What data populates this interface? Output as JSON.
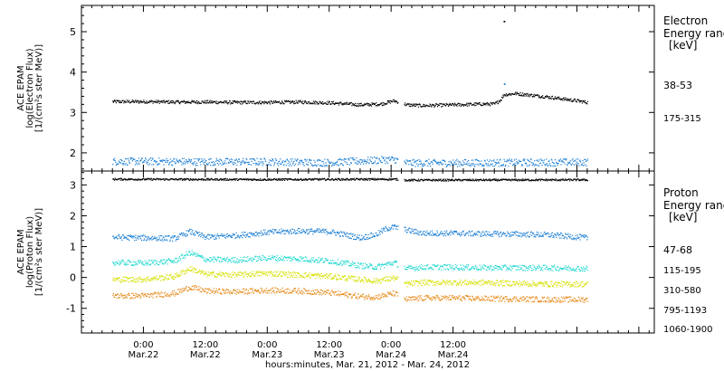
{
  "chart_data": [
    {
      "type": "scatter",
      "panel": "electron",
      "ylabel_lines": [
        "ACE EPAM",
        "log(Electron Flux)",
        "[1/(cm²s ster MeV)]"
      ],
      "ylim": [
        1.55,
        5.65
      ],
      "yticks": [
        2,
        3,
        4,
        5
      ],
      "legend_title_lines": [
        "Electron",
        "Energy ranges",
        "[keV]"
      ],
      "gap": [
        49.3,
        50.4
      ],
      "spikes": [
        {
          "t": 69.8,
          "v": 5.27
        },
        {
          "t": 69.85,
          "v": 3.72
        }
      ],
      "series": [
        {
          "name": "38-53",
          "color": "#000000",
          "x": [
            -6,
            0,
            6,
            12,
            18,
            24,
            30,
            36,
            42,
            46,
            48.5,
            51,
            54,
            60,
            66,
            68,
            69.2,
            69.8,
            72,
            78,
            84,
            86
          ],
          "y": [
            3.28,
            3.28,
            3.27,
            3.27,
            3.26,
            3.26,
            3.27,
            3.25,
            3.2,
            3.22,
            3.3,
            3.2,
            3.18,
            3.2,
            3.22,
            3.22,
            3.33,
            3.45,
            3.48,
            3.4,
            3.3,
            3.26
          ]
        },
        {
          "name": "175-315",
          "color": "#1a7ed4",
          "x": [
            -6,
            0,
            12,
            24,
            36,
            48.5,
            51,
            60,
            72,
            86
          ],
          "y": [
            1.8,
            1.8,
            1.79,
            1.79,
            1.77,
            1.85,
            1.76,
            1.76,
            1.77,
            1.78
          ]
        }
      ]
    },
    {
      "type": "scatter",
      "panel": "proton",
      "ylabel_lines": [
        "ACE EPAM",
        "log(Proton Flux)",
        "[1/(cm²s ster MeV)]"
      ],
      "ylim": [
        -1.8,
        3.45
      ],
      "yticks": [
        -1,
        0,
        1,
        2,
        3
      ],
      "legend_title_lines": [
        "Proton",
        "Energy ranges",
        "[keV]"
      ],
      "gap": [
        49.3,
        50.4
      ],
      "series": [
        {
          "name": "47-68",
          "color": "#000000",
          "x": [
            -6,
            24,
            48.5,
            51,
            86
          ],
          "y": [
            3.2,
            3.19,
            3.2,
            3.17,
            3.18
          ]
        },
        {
          "name": "115-195",
          "color": "#1a7ed4",
          "x": [
            -6,
            0,
            6,
            9,
            12,
            18,
            24,
            30,
            36,
            42,
            45,
            47,
            48.5,
            51,
            54,
            60,
            66,
            72,
            78,
            86
          ],
          "y": [
            1.32,
            1.3,
            1.28,
            1.5,
            1.32,
            1.38,
            1.48,
            1.52,
            1.5,
            1.3,
            1.4,
            1.6,
            1.65,
            1.55,
            1.45,
            1.45,
            1.43,
            1.42,
            1.4,
            1.3
          ]
        },
        {
          "name": "310-580",
          "color": "#22d8d0",
          "x": [
            -6,
            0,
            6,
            9,
            12,
            18,
            24,
            30,
            36,
            42,
            45,
            48.5,
            51,
            54,
            60,
            66,
            72,
            78,
            86
          ],
          "y": [
            0.5,
            0.48,
            0.55,
            0.82,
            0.6,
            0.58,
            0.65,
            0.62,
            0.55,
            0.4,
            0.35,
            0.5,
            0.3,
            0.35,
            0.35,
            0.33,
            0.33,
            0.33,
            0.3
          ]
        },
        {
          "name": "795-1193",
          "color": "#d6e000",
          "x": [
            -6,
            0,
            6,
            9,
            12,
            18,
            24,
            30,
            36,
            42,
            45,
            48.5,
            51,
            54,
            60,
            66,
            72,
            78,
            86
          ],
          "y": [
            -0.05,
            -0.05,
            0.05,
            0.3,
            0.12,
            0.1,
            0.15,
            0.1,
            0.05,
            -0.05,
            -0.1,
            0.0,
            -0.2,
            -0.15,
            -0.15,
            -0.15,
            -0.18,
            -0.2,
            -0.2
          ]
        },
        {
          "name": "1060-1900",
          "color": "#e68a1a",
          "x": [
            -6,
            0,
            6,
            9,
            12,
            18,
            24,
            30,
            36,
            42,
            45,
            48.5,
            51,
            54,
            60,
            66,
            72,
            78,
            86
          ],
          "y": [
            -0.58,
            -0.58,
            -0.5,
            -0.3,
            -0.42,
            -0.45,
            -0.4,
            -0.42,
            -0.48,
            -0.6,
            -0.62,
            -0.5,
            -0.7,
            -0.65,
            -0.65,
            -0.67,
            -0.68,
            -0.7,
            -0.7
          ]
        }
      ]
    }
  ],
  "x_axis": {
    "domain": [
      -12,
      99
    ],
    "major_ticks": [
      {
        "t": 0,
        "time": "0:00",
        "date": "Mar.22"
      },
      {
        "t": 12,
        "time": "12:00",
        "date": "Mar.22"
      },
      {
        "t": 24,
        "time": "0:00",
        "date": "Mar.23"
      },
      {
        "t": 36,
        "time": "12:00",
        "date": "Mar.23"
      },
      {
        "t": 48,
        "time": "0:00",
        "date": "Mar.24"
      },
      {
        "t": 60,
        "time": "12:00",
        "date": "Mar.24"
      }
    ],
    "caption": "hours:minutes, Mar. 21, 2012 - Mar. 24, 2012"
  }
}
